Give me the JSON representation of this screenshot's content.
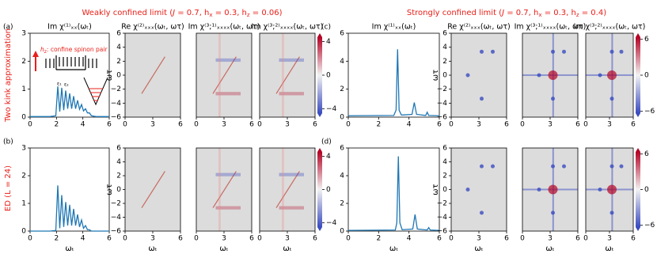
{
  "titles": {
    "weak": [
      "Weakly confined limit (",
      "J",
      " = 0.7, h",
      "x",
      " = 0.3, h",
      "z",
      " = 0.06)"
    ],
    "strong": [
      "Strongly confined limit (",
      "J",
      " = 0.7, h",
      "x",
      " = 0.3, h",
      "z",
      " = 0.4)"
    ]
  },
  "row_labels": [
    "Two kink approximation",
    "ED (L = 24)"
  ],
  "inset": {
    "text": [
      "h",
      "z",
      ": confine spinon pair"
    ],
    "levels": [
      "ε₁",
      "ε₂"
    ]
  },
  "chart_data": [
    {
      "type": "line",
      "label": "(a)",
      "title": "Im χ⁽¹⁾ₓₓ(ωₜ)",
      "color": "#1f77b4",
      "x": [
        0,
        1.5,
        1.95,
        2.1,
        2.25,
        2.4,
        2.55,
        2.7,
        2.85,
        3.0,
        3.15,
        3.3,
        3.45,
        3.6,
        3.75,
        3.9,
        4.05,
        4.2,
        4.35,
        4.5,
        4.65,
        5.0,
        6
      ],
      "values": [
        0.02,
        0.02,
        0.05,
        1.1,
        0.2,
        1.05,
        0.25,
        0.95,
        0.3,
        0.85,
        0.3,
        0.75,
        0.3,
        0.6,
        0.28,
        0.45,
        0.22,
        0.3,
        0.15,
        0.15,
        0.05,
        0.02,
        0.02
      ],
      "xlim": [
        0,
        6
      ],
      "xticks": [
        0,
        2,
        4,
        6
      ],
      "ylim": [
        0,
        3
      ],
      "yticks": [
        0,
        1,
        2,
        3
      ]
    },
    {
      "type": "heatmap",
      "title": "Re χ⁽²⁾ₓₓₓ(ωₜ, ωτ)",
      "xlim": [
        0,
        6
      ],
      "xticks": [
        0,
        3,
        6
      ],
      "ylim": [
        -6,
        6
      ],
      "yticks": [
        {
          "value": -6,
          "label": "−6"
        },
        {
          "value": -4,
          "label": "−4"
        },
        {
          "value": -2,
          "label": "−2"
        },
        0,
        2,
        4,
        6
      ],
      "ylabel": "ωτ"
    },
    {
      "type": "heatmap",
      "title": "Im χ⁽³;¹⁾ₓₓₓₓ(ωₜ, ωτ)",
      "xlim": [
        0,
        6
      ],
      "xticks": [
        0,
        3,
        6
      ],
      "ylim": [
        -6,
        6
      ]
    },
    {
      "type": "heatmap",
      "title": "Im χ⁽³;²⁾ₓₓₓₓ(ωₜ, ωτ)",
      "xlim": [
        0,
        6
      ],
      "xticks": [
        0,
        3,
        6
      ],
      "ylim": [
        -6,
        6
      ],
      "colorbar": {
        "lim": [
          -5,
          5
        ],
        "ticks": [
          {
            "value": -4,
            "label": "−4"
          },
          0,
          4
        ]
      }
    },
    {
      "type": "line",
      "label": "(c)",
      "title": "Im χ⁽¹⁾ₓₓ(ωₜ)",
      "color": "#1f77b4",
      "x": [
        0,
        3.0,
        3.15,
        3.25,
        3.35,
        3.5,
        4.2,
        4.35,
        4.5,
        5.1,
        5.2,
        5.3,
        6
      ],
      "values": [
        0.1,
        0.12,
        0.5,
        4.85,
        0.5,
        0.15,
        0.2,
        1.05,
        0.2,
        0.12,
        0.35,
        0.12,
        0.1
      ],
      "xlim": [
        0,
        6
      ],
      "xticks": [
        0,
        2,
        4,
        6
      ],
      "ylim": [
        0,
        6
      ],
      "yticks": [
        0,
        2,
        4,
        6
      ]
    },
    {
      "type": "heatmap",
      "title": "Re χ⁽²⁾ₓₓₓ(ωₜ, ωτ)",
      "xlim": [
        0,
        6
      ],
      "xticks": [
        0,
        3,
        6
      ],
      "ylim": [
        -6,
        6
      ],
      "yticks": [
        {
          "value": -6,
          "label": "−6"
        },
        {
          "value": -4,
          "label": "−4"
        },
        {
          "value": -2,
          "label": "−2"
        },
        0,
        2,
        4,
        6
      ],
      "ylabel": "ωτ"
    },
    {
      "type": "heatmap",
      "title": "Im χ⁽³;¹⁾ₓₓₓₓ(ωₜ, ωτ)",
      "xlim": [
        0,
        6
      ],
      "xticks": [
        0,
        3,
        6
      ],
      "ylim": [
        -6,
        6
      ]
    },
    {
      "type": "heatmap",
      "title": "Im χ⁽³;²⁾ₓₓₓₓ(ωₜ, ωτ)",
      "xlim": [
        0,
        6
      ],
      "xticks": [
        0,
        3,
        6
      ],
      "ylim": [
        -6,
        6
      ],
      "colorbar": {
        "lim": [
          -7,
          7
        ],
        "ticks": [
          {
            "value": -6,
            "label": "−6"
          },
          0,
          6
        ]
      }
    },
    {
      "type": "line",
      "label": "(b)",
      "color": "#1f77b4",
      "xlabel": "ωₜ",
      "x": [
        0,
        1.5,
        1.95,
        2.1,
        2.25,
        2.4,
        2.55,
        2.7,
        2.85,
        3.0,
        3.15,
        3.3,
        3.45,
        3.6,
        3.75,
        3.9,
        4.05,
        4.2,
        4.35,
        4.5,
        4.65,
        5.0,
        6
      ],
      "values": [
        0,
        0,
        0.02,
        1.65,
        0.1,
        1.3,
        0.15,
        1.05,
        0.2,
        0.95,
        0.2,
        0.8,
        0.2,
        0.6,
        0.15,
        0.4,
        0.1,
        0.2,
        0.05,
        0.05,
        0,
        0,
        0
      ],
      "xlim": [
        0,
        6
      ],
      "xticks": [
        0,
        2,
        4,
        6
      ],
      "ylim": [
        0,
        3
      ],
      "yticks": [
        0,
        1,
        2,
        3
      ]
    },
    {
      "type": "heatmap",
      "xlim": [
        0,
        6
      ],
      "xticks": [
        0,
        3,
        6
      ],
      "ylim": [
        -6,
        6
      ],
      "xlabel": "ωₜ",
      "yticks": [
        {
          "value": -6,
          "label": "−6"
        },
        {
          "value": -4,
          "label": "−4"
        },
        {
          "value": -2,
          "label": "−2"
        },
        0,
        2,
        4,
        6
      ],
      "ylabel": "ωτ"
    },
    {
      "type": "heatmap",
      "xlim": [
        0,
        6
      ],
      "xticks": [
        0,
        3,
        6
      ],
      "ylim": [
        -6,
        6
      ],
      "xlabel": "ωₜ"
    },
    {
      "type": "heatmap",
      "xlim": [
        0,
        6
      ],
      "xticks": [
        0,
        3,
        6
      ],
      "ylim": [
        -6,
        6
      ],
      "xlabel": "ωₜ",
      "colorbar": {
        "lim": [
          -5,
          5
        ],
        "ticks": [
          {
            "value": -4,
            "label": "−4"
          },
          0,
          4
        ]
      }
    },
    {
      "type": "line",
      "label": "(d)",
      "color": "#1f77b4",
      "xlabel": "ωₜ",
      "x": [
        0,
        3.1,
        3.2,
        3.3,
        3.4,
        3.55,
        4.25,
        4.4,
        4.55,
        5.2,
        5.3,
        5.4,
        6
      ],
      "values": [
        0.05,
        0.08,
        0.6,
        5.4,
        0.6,
        0.1,
        0.15,
        1.2,
        0.15,
        0.08,
        0.25,
        0.08,
        0.05
      ],
      "xlim": [
        0,
        6
      ],
      "xticks": [
        0,
        2,
        4,
        6
      ],
      "ylim": [
        0,
        6
      ],
      "yticks": [
        0,
        2,
        4,
        6
      ]
    },
    {
      "type": "heatmap",
      "xlim": [
        0,
        6
      ],
      "xticks": [
        0,
        3,
        6
      ],
      "ylim": [
        -6,
        6
      ],
      "xlabel": "ωₜ",
      "yticks": [
        {
          "value": -6,
          "label": "−6"
        },
        {
          "value": -4,
          "label": "−4"
        },
        {
          "value": -2,
          "label": "−2"
        },
        0,
        2,
        4,
        6
      ],
      "ylabel": "ωτ"
    },
    {
      "type": "heatmap",
      "xlim": [
        0,
        6
      ],
      "xticks": [
        0,
        3,
        6
      ],
      "ylim": [
        -6,
        6
      ],
      "xlabel": "ωₜ"
    },
    {
      "type": "heatmap",
      "xlim": [
        0,
        6
      ],
      "xticks": [
        0,
        3,
        6
      ],
      "ylim": [
        -6,
        6
      ],
      "xlabel": "ωₜ",
      "colorbar": {
        "lim": [
          -7,
          7
        ],
        "ticks": [
          {
            "value": -6,
            "label": "−6"
          },
          0,
          6
        ]
      }
    }
  ]
}
